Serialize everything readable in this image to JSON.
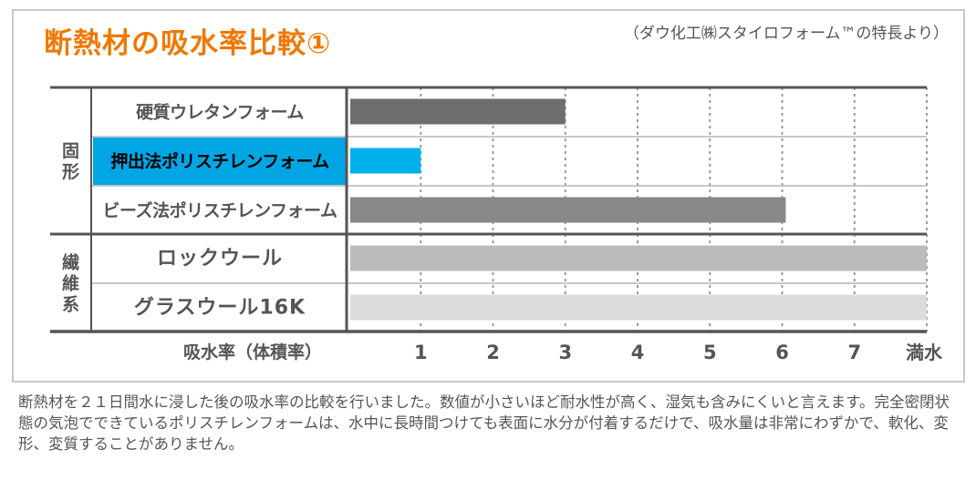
{
  "title": "断熱材の吸水率比較①",
  "source_note": "（ダウ化工㈱スタイロフォーム™の特長より）",
  "caption": "断熱材を２１日間水に浸した後の吸水率の比較を行いました。数値が小さいほど耐水性が高く、湿気も含みにくいと言えます。完全密閉状態の気泡でできているポリスチレンフォームは、水中に長時間つけても表面に水分が付着するだけで、吸水量は非常にわずかで、軟化、変形、変質することがありません。",
  "colors": {
    "title": "#f07800",
    "highlight_cell": "#00a6e4",
    "bar_highlight": "#00b0ea",
    "bar_dark": "#6e6e6e",
    "bar_mid": "#888888",
    "bar_light": "#bbbbbb",
    "bar_lightest": "#dcdcdc"
  },
  "chart_data": {
    "type": "bar",
    "orientation": "horizontal",
    "xlabel": "吸水率（体積率）",
    "x_ticks": [
      "1",
      "2",
      "3",
      "4",
      "5",
      "6",
      "7",
      "満水"
    ],
    "xlim": [
      0,
      8
    ],
    "grid": true,
    "groups": [
      {
        "label": "固形",
        "items": [
          "硬質ウレタンフォーム",
          "押出法ポリスチレンフォーム",
          "ビーズ法ポリスチレンフォーム"
        ]
      },
      {
        "label": "繊維系",
        "items": [
          "ロックウール",
          "グラスウール16K"
        ]
      }
    ],
    "categories": [
      "硬質ウレタンフォーム",
      "押出法ポリスチレンフォーム",
      "ビーズ法ポリスチレンフォーム",
      "ロックウール",
      "グラスウール16K"
    ],
    "values": [
      3.0,
      1.0,
      6.05,
      8.0,
      8.0
    ],
    "highlighted": "押出法ポリスチレンフォーム",
    "bar_colors": [
      "#6e6e6e",
      "#00b0ea",
      "#888888",
      "#bbbbbb",
      "#dcdcdc"
    ]
  }
}
